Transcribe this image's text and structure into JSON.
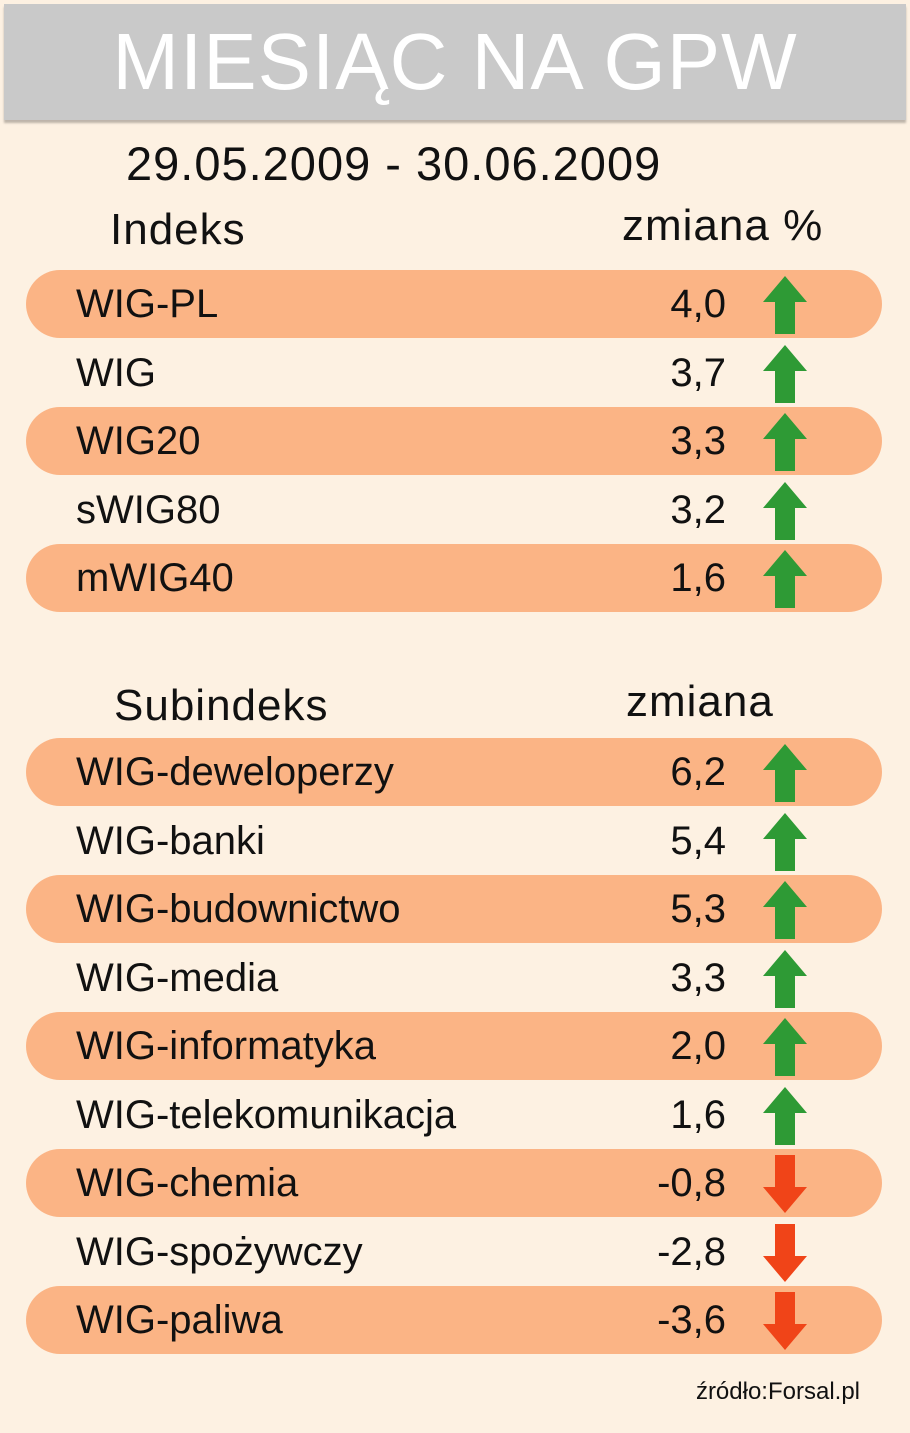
{
  "title": "MIESIĄC NA GPW",
  "date_range": "29.05.2009 - 30.06.2009",
  "source": "źródło:Forsal.pl",
  "colors": {
    "background": "#fdf1e2",
    "header": "#c9c9c9",
    "row_shade": "#fbb485",
    "up": "#2e9a35",
    "down": "#f04418"
  },
  "chart_data": [
    {
      "type": "table",
      "headers": [
        "Indeks",
        "zmiana %"
      ],
      "rows": [
        {
          "name": "WIG-PL",
          "value": "4,0",
          "direction": "up",
          "icon": "arrow-up-icon"
        },
        {
          "name": "WIG",
          "value": "3,7",
          "direction": "up",
          "icon": "arrow-up-icon"
        },
        {
          "name": "WIG20",
          "value": "3,3",
          "direction": "up",
          "icon": "arrow-up-icon"
        },
        {
          "name": "sWIG80",
          "value": "3,2",
          "direction": "up",
          "icon": "arrow-up-icon"
        },
        {
          "name": "mWIG40",
          "value": "1,6",
          "direction": "up",
          "icon": "arrow-up-icon"
        }
      ]
    },
    {
      "type": "table",
      "headers": [
        "Subindeks",
        "zmiana"
      ],
      "rows": [
        {
          "name": "WIG-deweloperzy",
          "value": "6,2",
          "direction": "up",
          "icon": "arrow-up-icon"
        },
        {
          "name": "WIG-banki",
          "value": "5,4",
          "direction": "up",
          "icon": "arrow-up-icon"
        },
        {
          "name": "WIG-budownictwo",
          "value": "5,3",
          "direction": "up",
          "icon": "arrow-up-icon"
        },
        {
          "name": "WIG-media",
          "value": "3,3",
          "direction": "up",
          "icon": "arrow-up-icon"
        },
        {
          "name": "WIG-informatyka",
          "value": "2,0",
          "direction": "up",
          "icon": "arrow-up-icon"
        },
        {
          "name": "WIG-telekomunikacja",
          "value": "1,6",
          "direction": "up",
          "icon": "arrow-up-icon"
        },
        {
          "name": "WIG-chemia",
          "value": "-0,8",
          "direction": "down",
          "icon": "arrow-down-icon"
        },
        {
          "name": "WIG-spożywczy",
          "value": "-2,8",
          "direction": "down",
          "icon": "arrow-down-icon"
        },
        {
          "name": "WIG-paliwa",
          "value": "-3,6",
          "direction": "down",
          "icon": "arrow-down-icon"
        }
      ]
    }
  ]
}
